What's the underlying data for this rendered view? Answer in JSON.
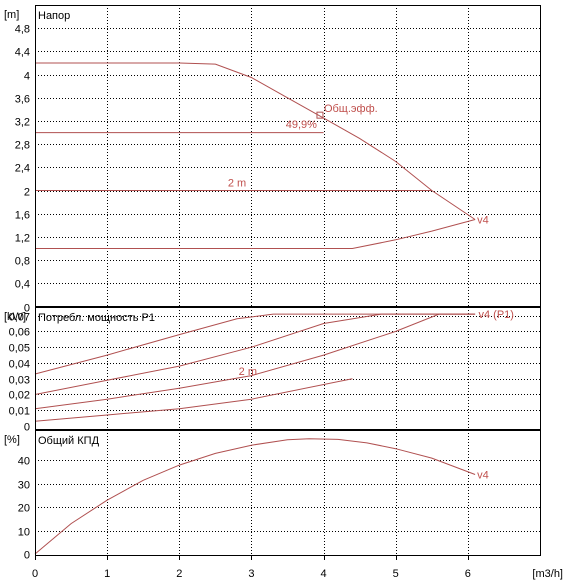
{
  "chart_data": [
    {
      "type": "line",
      "title": "Напор",
      "unit": "[m]",
      "xlim": [
        0,
        7
      ],
      "ylim": [
        0,
        5.2
      ],
      "y_ticks": [
        "0",
        "0,4",
        "0,8",
        "1,2",
        "1,6",
        "2",
        "2,4",
        "2,8",
        "3,2",
        "3,6",
        "4",
        "4,4",
        "4,8"
      ],
      "y_tick_values": [
        0,
        0.4,
        0.8,
        1.2,
        1.6,
        2.0,
        2.4,
        2.8,
        3.2,
        3.6,
        4.0,
        4.4,
        4.8
      ],
      "grid": true,
      "series": [
        {
          "label": "v4",
          "x": [
            0,
            2.0,
            2.5,
            3.0,
            3.5,
            4.0,
            4.5,
            5.0,
            5.5,
            6.1
          ],
          "y": [
            4.2,
            4.2,
            4.18,
            3.95,
            3.6,
            3.25,
            2.9,
            2.5,
            2.0,
            1.5
          ]
        },
        {
          "label": "",
          "x": [
            0,
            4.0
          ],
          "y": [
            3.0,
            3.0
          ]
        },
        {
          "label": "2 m",
          "x": [
            0,
            5.5
          ],
          "y": [
            2.0,
            2.0
          ]
        },
        {
          "label": "",
          "x": [
            0,
            4.4,
            5.0,
            5.5,
            6.1
          ],
          "y": [
            1.0,
            1.0,
            1.15,
            1.3,
            1.5
          ]
        }
      ],
      "annotations": [
        {
          "text": "Общ.эфф.",
          "x": 3.95,
          "y": 3.3
        },
        {
          "text": "49,9%",
          "x": 3.95,
          "y": 3.3
        }
      ]
    },
    {
      "type": "line",
      "title": "Потребл. мощность P1",
      "unit": "[kW]",
      "xlim": [
        0,
        7
      ],
      "ylim": [
        0,
        0.0755
      ],
      "y_ticks": [
        "0",
        "0,01",
        "0,02",
        "0,03",
        "0,04",
        "0,05",
        "0,06",
        "0,07"
      ],
      "y_tick_values": [
        0,
        0.01,
        0.02,
        0.03,
        0.04,
        0.05,
        0.06,
        0.07
      ],
      "grid": true,
      "series": [
        {
          "label": "",
          "x": [
            0,
            1.0,
            2.0,
            2.8,
            3.3,
            6.1
          ],
          "y": [
            0.033,
            0.045,
            0.058,
            0.068,
            0.071,
            0.071
          ]
        },
        {
          "label": "",
          "x": [
            0,
            1.0,
            2.0,
            3.0,
            4.0,
            4.8,
            6.1
          ],
          "y": [
            0.02,
            0.029,
            0.038,
            0.05,
            0.065,
            0.071,
            0.071
          ]
        },
        {
          "label": "2 m",
          "x": [
            0,
            1.0,
            2.0,
            3.0,
            4.0,
            5.0,
            5.6,
            6.1
          ],
          "y": [
            0.011,
            0.017,
            0.024,
            0.032,
            0.045,
            0.06,
            0.071,
            0.071
          ]
        },
        {
          "label": "",
          "x": [
            0,
            1.0,
            2.0,
            3.0,
            4.4
          ],
          "y": [
            0.003,
            0.007,
            0.011,
            0.017,
            0.03
          ]
        }
      ],
      "annotations": [
        {
          "text": "v4 (P1)",
          "x": 6.12,
          "y": 0.071
        }
      ]
    },
    {
      "type": "line",
      "title": "Общий КПД",
      "unit": "[%]",
      "xlabel": "[m3/h]",
      "xlim": [
        0,
        7
      ],
      "ylim": [
        0,
        53
      ],
      "x_ticks": [
        "0",
        "1",
        "2",
        "3",
        "4",
        "5",
        "6"
      ],
      "x_tick_values": [
        0,
        1,
        2,
        3,
        4,
        5,
        6
      ],
      "y_ticks": [
        "0",
        "10",
        "20",
        "30",
        "40"
      ],
      "y_tick_values": [
        0,
        10,
        20,
        30,
        40
      ],
      "grid": true,
      "series": [
        {
          "label": "v4",
          "x": [
            0,
            0.5,
            1.0,
            1.5,
            2.0,
            2.5,
            3.0,
            3.5,
            3.8,
            4.2,
            4.6,
            5.0,
            5.5,
            6.1
          ],
          "y": [
            0,
            13,
            23,
            31.5,
            38,
            43,
            46.5,
            48.8,
            49.3,
            49,
            47.5,
            45,
            41,
            34
          ]
        }
      ]
    }
  ]
}
